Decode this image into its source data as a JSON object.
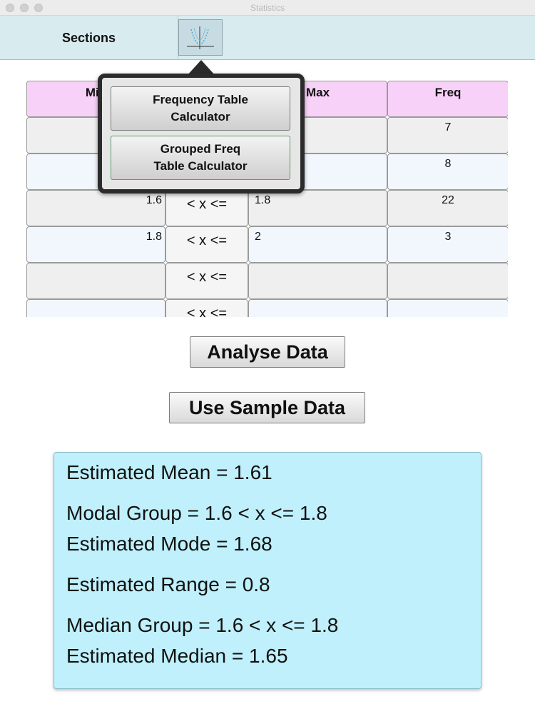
{
  "window": {
    "title": "Statistics"
  },
  "toolbar": {
    "sections_label": "Sections"
  },
  "table": {
    "headers": [
      "Min",
      "",
      "Max",
      "Freq"
    ],
    "rows": [
      {
        "min": "",
        "op": "",
        "max": "",
        "freq": "7"
      },
      {
        "min": "",
        "op": "",
        "max": "",
        "freq": "8"
      },
      {
        "min": "1.6",
        "op": "< x <=",
        "max": "1.8",
        "freq": "22"
      },
      {
        "min": "1.8",
        "op": "< x <=",
        "max": "2",
        "freq": "3"
      },
      {
        "min": "",
        "op": "< x <=",
        "max": "",
        "freq": ""
      },
      {
        "min": "",
        "op": "< x <=",
        "max": "",
        "freq": ""
      }
    ]
  },
  "popover": {
    "items": [
      {
        "label": "Frequency Table\nCalculator"
      },
      {
        "label": "Grouped Freq\nTable Calculator"
      }
    ]
  },
  "actions": {
    "analyse_label": "Analyse Data",
    "sample_label": "Use Sample Data"
  },
  "results": {
    "mean": "Estimated Mean = 1.61",
    "modal_group": "Modal Group = 1.6 < x <= 1.8",
    "mode": "Estimated Mode = 1.68",
    "range": "Estimated Range = 0.8",
    "median_group": "Median Group = 1.6 < x <= 1.8",
    "median": "Estimated Median = 1.65"
  },
  "colors": {
    "header_bg": "#f8d1f8",
    "toolbar_bg": "#d8ecf0",
    "results_bg": "#bff0fb"
  },
  "icons": {
    "graph_button": "graph-icon"
  }
}
